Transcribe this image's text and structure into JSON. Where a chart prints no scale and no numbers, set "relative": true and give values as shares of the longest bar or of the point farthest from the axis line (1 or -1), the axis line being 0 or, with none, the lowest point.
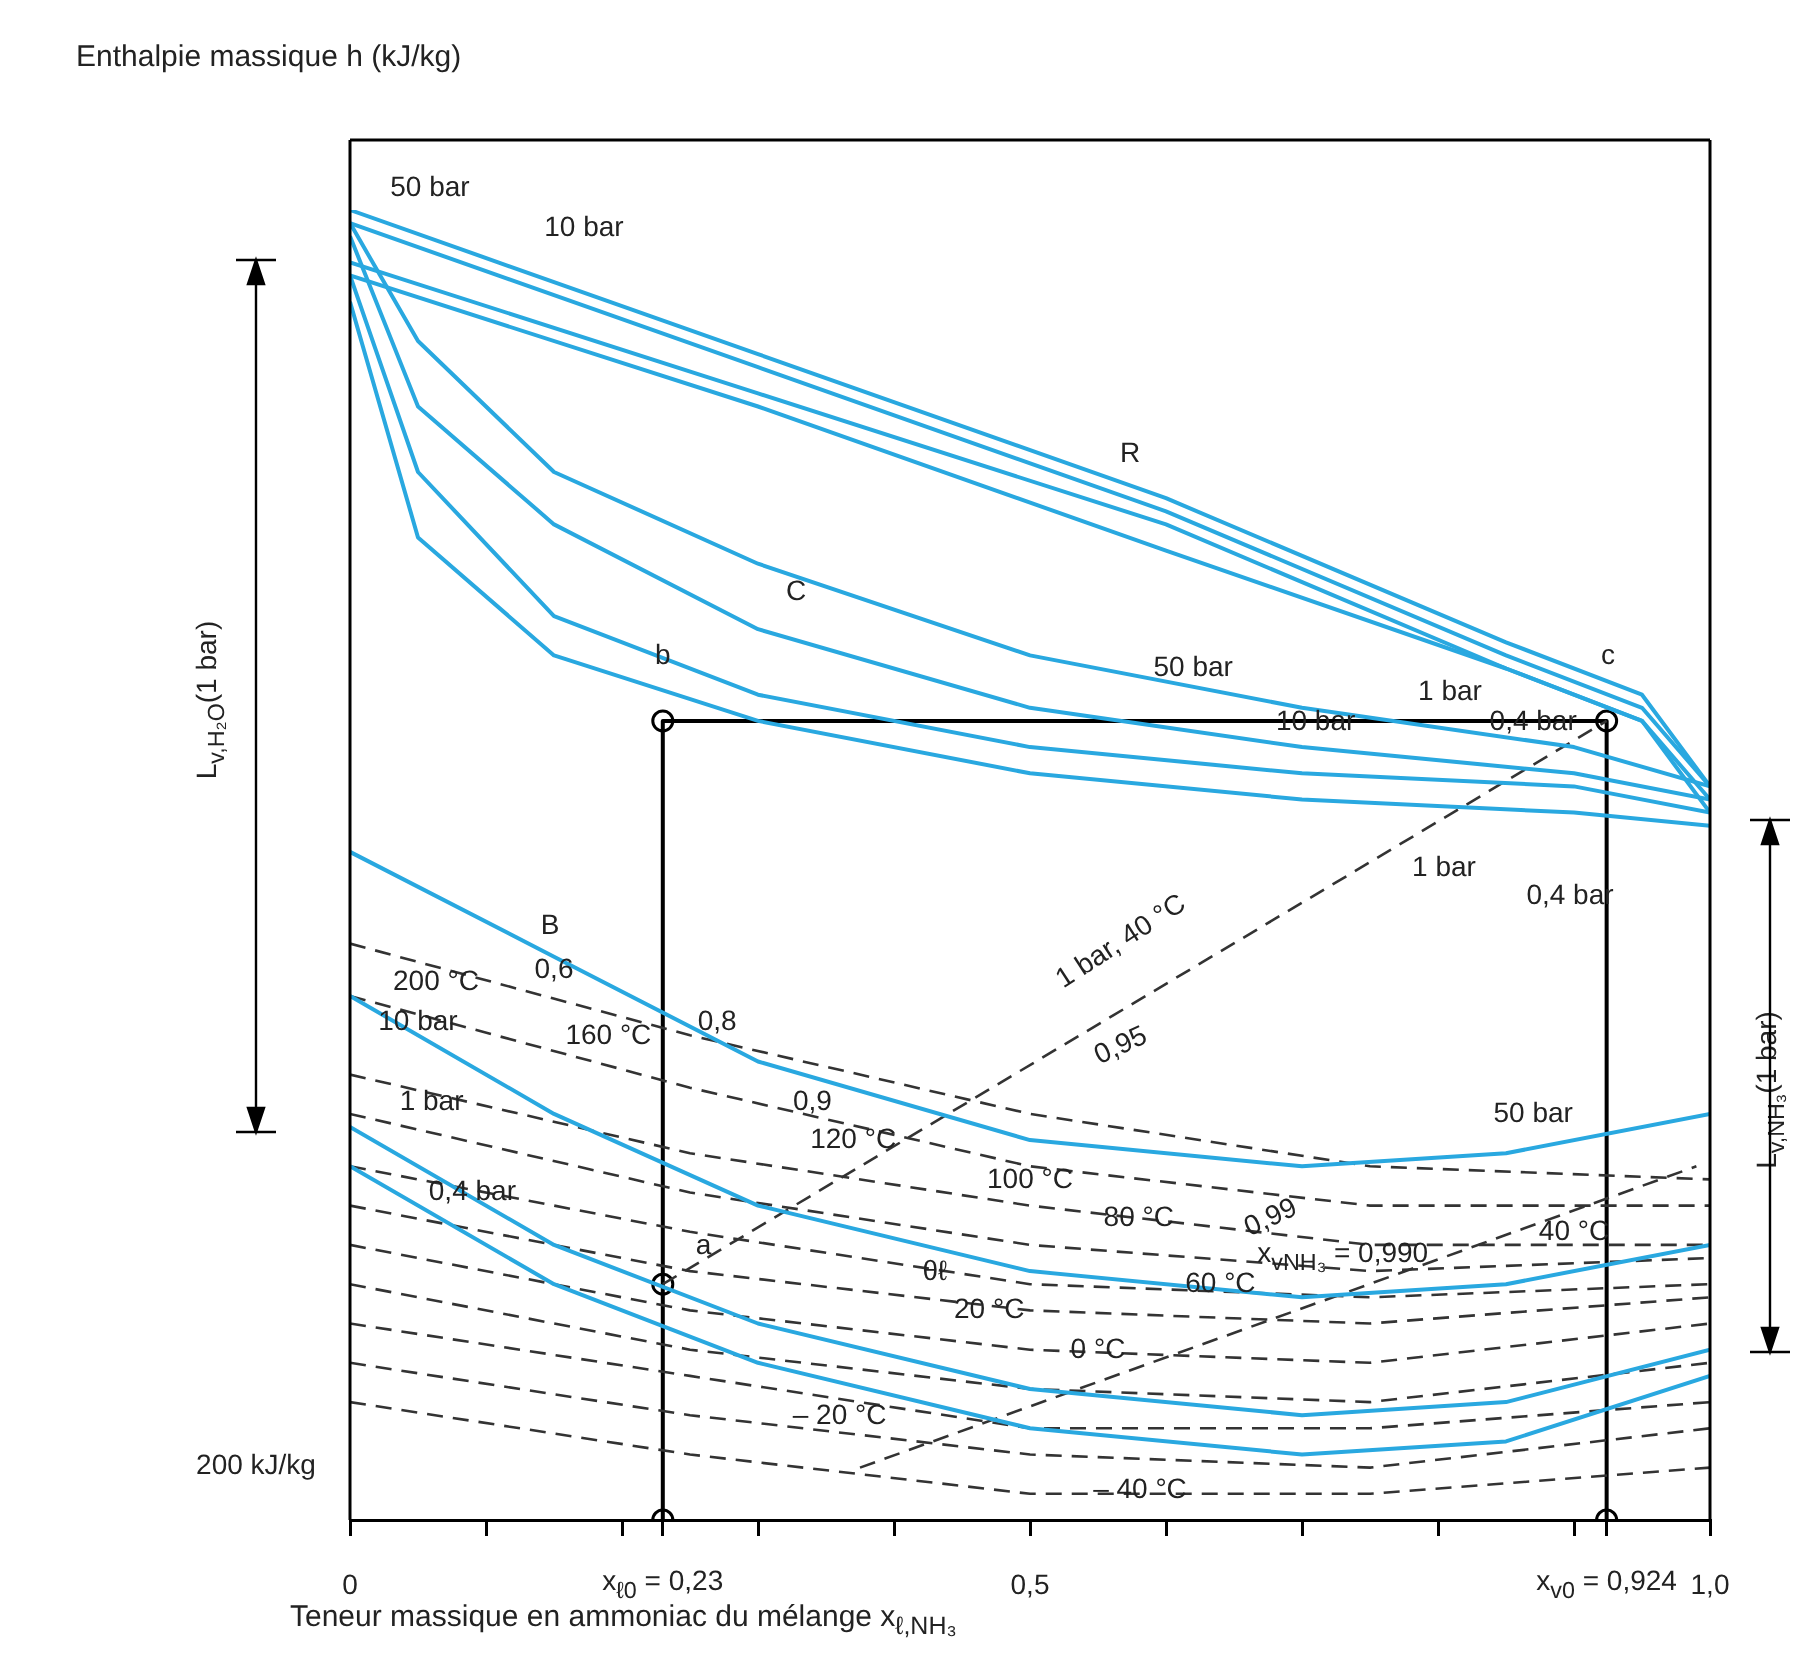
{
  "chart_data": {
    "type": "line",
    "relative": true,
    "legend": false,
    "grid": false,
    "marker": "none",
    "xlabel": "Teneur massique en ammoniac du mélange  x$_{ℓ,NH₃}$",
    "ylabel": "Enthalpie massique h (kJ/kg)",
    "xlim": [
      0,
      1
    ],
    "xticks": [
      0,
      {
        "value": 0.1,
        "label": null
      },
      {
        "value": 0.2,
        "label": null
      },
      {
        "value": 0.23,
        "label": "x$_{ℓ0}$ = 0,23"
      },
      {
        "value": 0.3,
        "label": null
      },
      {
        "value": 0.4,
        "label": null
      },
      {
        "value": 0.5,
        "label": "0,5"
      },
      {
        "value": 0.6,
        "label": null
      },
      {
        "value": 0.7,
        "label": null
      },
      {
        "value": 0.8,
        "label": null
      },
      {
        "value": 0.9,
        "label": null
      },
      {
        "value": 0.924,
        "label": "x$_{v0}$ = 0,924"
      },
      {
        "value": 1,
        "label": "1,0"
      }
    ],
    "series": [
      {
        "color": "#29a8e0",
        "x": [
          0,
          0.3,
          0.6,
          0.85,
          0.95,
          1
        ],
        "values": [
          1.0,
          0.89,
          0.78,
          0.67,
          0.63,
          0.56
        ]
      },
      {
        "color": "#29a8e0",
        "x": [
          0,
          0.3,
          0.6,
          0.85,
          0.95,
          1
        ],
        "values": [
          0.99,
          0.88,
          0.77,
          0.66,
          0.62,
          0.56
        ]
      },
      {
        "color": "#29a8e0",
        "x": [
          0,
          0.3,
          0.6,
          0.85,
          0.95,
          1
        ],
        "values": [
          0.96,
          0.86,
          0.76,
          0.65,
          0.61,
          0.55
        ]
      },
      {
        "color": "#29a8e0",
        "x": [
          0,
          0.3,
          0.6,
          0.85,
          0.95,
          1
        ],
        "values": [
          0.95,
          0.85,
          0.74,
          0.65,
          0.61,
          0.54
        ]
      },
      {
        "color": "#29a8e0",
        "x": [
          0,
          0.05,
          0.15,
          0.3,
          0.5,
          0.7,
          0.9,
          1
        ],
        "values": [
          0.99,
          0.9,
          0.8,
          0.73,
          0.66,
          0.62,
          0.59,
          0.56
        ]
      },
      {
        "color": "#29a8e0",
        "x": [
          0,
          0.05,
          0.15,
          0.3,
          0.5,
          0.7,
          0.9,
          1
        ],
        "values": [
          0.98,
          0.85,
          0.76,
          0.68,
          0.62,
          0.59,
          0.57,
          0.55
        ]
      },
      {
        "color": "#29a8e0",
        "x": [
          0,
          0.05,
          0.15,
          0.3,
          0.5,
          0.7,
          0.9,
          1
        ],
        "values": [
          0.95,
          0.8,
          0.69,
          0.63,
          0.59,
          0.57,
          0.56,
          0.54
        ]
      },
      {
        "color": "#29a8e0",
        "x": [
          0,
          0.05,
          0.15,
          0.3,
          0.5,
          0.7,
          0.9,
          1
        ],
        "values": [
          0.93,
          0.75,
          0.66,
          0.61,
          0.57,
          0.55,
          0.54,
          0.53
        ]
      },
      {
        "color": "#29a8e0",
        "x": [
          0,
          0.15,
          0.3,
          0.5,
          0.7,
          0.85,
          1
        ],
        "values": [
          0.51,
          0.43,
          0.35,
          0.29,
          0.27,
          0.28,
          0.31
        ]
      },
      {
        "color": "#29a8e0",
        "x": [
          0,
          0.15,
          0.3,
          0.5,
          0.7,
          0.85,
          1
        ],
        "values": [
          0.4,
          0.31,
          0.24,
          0.19,
          0.17,
          0.18,
          0.21
        ]
      },
      {
        "color": "#29a8e0",
        "x": [
          0,
          0.15,
          0.3,
          0.5,
          0.7,
          0.85,
          1
        ],
        "values": [
          0.3,
          0.21,
          0.15,
          0.1,
          0.08,
          0.09,
          0.13
        ]
      },
      {
        "color": "#29a8e0",
        "x": [
          0,
          0.15,
          0.3,
          0.5,
          0.7,
          0.85,
          1
        ],
        "values": [
          0.27,
          0.18,
          0.12,
          0.07,
          0.05,
          0.06,
          0.11
        ]
      },
      {
        "color": "#333333",
        "line_style": "dashed",
        "x": [
          0,
          0.25,
          0.5,
          0.75,
          1
        ],
        "values": [
          0.44,
          0.37,
          0.31,
          0.27,
          0.26
        ]
      },
      {
        "color": "#333333",
        "line_style": "dashed",
        "x": [
          0,
          0.25,
          0.5,
          0.75,
          1
        ],
        "values": [
          0.4,
          0.33,
          0.27,
          0.24,
          0.24
        ]
      },
      {
        "color": "#333333",
        "line_style": "dashed",
        "x": [
          0,
          0.25,
          0.5,
          0.75,
          1
        ],
        "values": [
          0.34,
          0.28,
          0.24,
          0.21,
          0.21
        ]
      },
      {
        "color": "#333333",
        "line_style": "dashed",
        "x": [
          0,
          0.25,
          0.5,
          0.75,
          1
        ],
        "values": [
          0.31,
          0.25,
          0.21,
          0.19,
          0.2
        ]
      },
      {
        "color": "#333333",
        "line_style": "dashed",
        "x": [
          0,
          0.25,
          0.5,
          0.75,
          1
        ],
        "values": [
          0.27,
          0.22,
          0.18,
          0.17,
          0.18
        ]
      },
      {
        "color": "#333333",
        "line_style": "dashed",
        "x": [
          0,
          0.25,
          0.5,
          0.75,
          1
        ],
        "values": [
          0.24,
          0.19,
          0.16,
          0.15,
          0.17
        ]
      },
      {
        "color": "#333333",
        "line_style": "dashed",
        "x": [
          0,
          0.25,
          0.5,
          0.75,
          1
        ],
        "values": [
          0.21,
          0.16,
          0.13,
          0.12,
          0.15
        ]
      },
      {
        "color": "#333333",
        "line_style": "dashed",
        "x": [
          0,
          0.25,
          0.5,
          0.75,
          1
        ],
        "values": [
          0.18,
          0.13,
          0.1,
          0.09,
          0.12
        ]
      },
      {
        "color": "#333333",
        "line_style": "dashed",
        "x": [
          0,
          0.25,
          0.5,
          0.75,
          1
        ],
        "values": [
          0.15,
          0.11,
          0.07,
          0.07,
          0.09
        ]
      },
      {
        "color": "#333333",
        "line_style": "dashed",
        "x": [
          0,
          0.25,
          0.5,
          0.75,
          1
        ],
        "values": [
          0.12,
          0.08,
          0.05,
          0.04,
          0.07
        ]
      },
      {
        "color": "#333333",
        "line_style": "dashed",
        "x": [
          0,
          0.25,
          0.5,
          0.75,
          1
        ],
        "values": [
          0.09,
          0.05,
          0.02,
          0.02,
          0.04
        ]
      },
      {
        "color": "#333333",
        "line_style": "dashed",
        "x": [
          0.23,
          0.924
        ],
        "values": [
          0.18,
          0.61
        ]
      },
      {
        "color": "#333333",
        "line_style": "dashed",
        "x": [
          0.375,
          0.99
        ],
        "values": [
          0.04,
          0.27
        ]
      },
      {
        "color": "#000000",
        "x": [
          0.23,
          0.23,
          0.924,
          0.924
        ],
        "values": [
          0,
          0.61,
          0.61,
          0
        ]
      },
      {
        "type": "scatter",
        "marker": "circle",
        "color": "#000000",
        "x": [
          0.23,
          0.23,
          0.924,
          0.23,
          0.924
        ],
        "values": [
          0,
          0.18,
          0.61,
          0.61,
          0
        ]
      }
    ],
    "annotations": [
      "200 kJ/kg",
      "L$_{v,H₂O}$(1 bar)",
      "L$_{v,NH₃}$(1 bar)",
      "50 bar",
      "10 bar",
      "R",
      "C",
      "1 bar",
      "1 bar",
      "0,4 bar",
      "B",
      "200 °C",
      "1 bar, 40 °C",
      "0,95",
      "0,99",
      "– 40 °C",
      {
        "text": "50 bar",
        "x": 0.62,
        "y": 0.63
      },
      {
        "text": "10 bar",
        "x": 0.71,
        "y": 0.59
      },
      {
        "text": "0,4 bar",
        "x": 0.87,
        "y": 0.59
      },
      {
        "text": "0,6",
        "x": 0.15,
        "y": 0.4
      },
      {
        "text": "10 bar",
        "x": 0.05,
        "y": 0.36
      },
      {
        "text": "160 °C",
        "x": 0.19,
        "y": 0.35
      },
      {
        "text": "0,8",
        "x": 0.27,
        "y": 0.36
      },
      {
        "text": "0,9",
        "x": 0.34,
        "y": 0.3
      },
      {
        "text": "120 °C",
        "x": 0.37,
        "y": 0.27
      },
      {
        "text": "50 bar",
        "x": 0.87,
        "y": 0.29
      },
      {
        "text": "100 °C",
        "x": 0.5,
        "y": 0.24
      },
      {
        "text": "80 °C",
        "x": 0.58,
        "y": 0.21
      },
      {
        "text": "x$_{vNH₃}$ = 0,990",
        "x": 0.73,
        "y": 0.18
      },
      {
        "text": "60 °C",
        "x": 0.64,
        "y": 0.16
      },
      {
        "text": "40 °C",
        "x": 0.9,
        "y": 0.2
      },
      {
        "text": "θℓ",
        "x": 0.43,
        "y": 0.17
      },
      {
        "text": "a",
        "x": 0.26,
        "y": 0.19
      },
      {
        "text": "b",
        "x": 0.23,
        "y": 0.64
      },
      {
        "text": "c",
        "x": 0.925,
        "y": 0.64
      },
      {
        "text": "1 bar",
        "x": 0.06,
        "y": 0.3
      },
      {
        "text": "0,4 bar",
        "x": 0.09,
        "y": 0.23
      },
      {
        "text": "20 °C",
        "x": 0.47,
        "y": 0.14
      },
      {
        "text": "0 °C",
        "x": 0.55,
        "y": 0.11
      },
      {
        "text": "– 20 °C",
        "x": 0.36,
        "y": 0.06
      }
    ]
  }
}
